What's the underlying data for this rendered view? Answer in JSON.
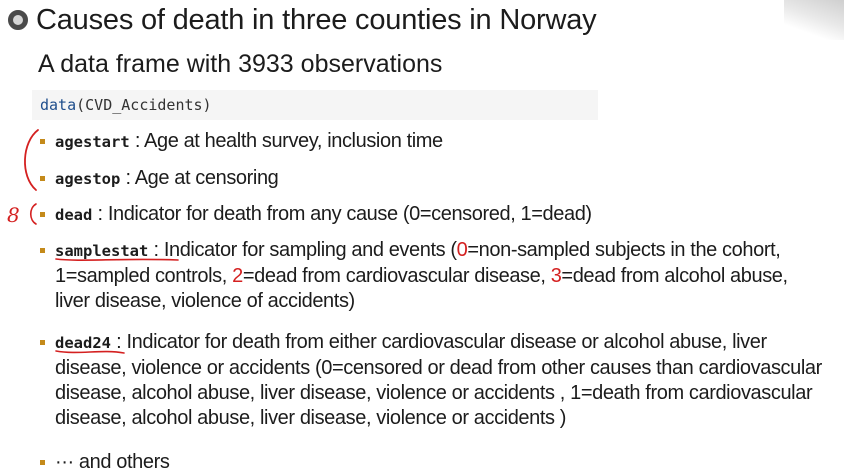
{
  "slide": {
    "title": "Causes of death in three counties in Norway",
    "subtitle": "A data frame with 3933 observations",
    "code": {
      "fn": "data",
      "args": "(CVD_Accidents)"
    },
    "bullets": [
      {
        "term": "agestart",
        "sep": " : ",
        "text": "Age at health survey, inclusion time"
      },
      {
        "term": "agestop",
        "sep": " : ",
        "text": "Age at censoring"
      },
      {
        "term": "dead",
        "sep": " : ",
        "text": "Indicator for death from any cause (0=censored, 1=dead)"
      },
      {
        "term": "samplestat",
        "sep": " : ",
        "text_a": "Indicator for sampling and events (",
        "mark_0": "0",
        "text_b": "=non-sampled subjects in the cohort, 1=sampled controls, ",
        "mark_2": "2",
        "text_c": "=dead from cardiovascular disease, ",
        "mark_3": "3",
        "text_d": "=dead from alcohol abuse, liver disease, violence of accidents)"
      },
      {
        "term": "dead24",
        "sep": " : ",
        "text": "Indicator for death from either cardiovascular disease or alcohol abuse, liver disease, violence or accidents (0=censored or dead from other causes than cardiovascular disease, alcohol abuse, liver disease, violence or accidents , 1=death from cardiovascular disease, alcohol abuse, liver disease, violence or accidents )"
      },
      {
        "term": "",
        "sep": "",
        "text": "··· and others"
      }
    ],
    "annotations": {
      "margin_note": "8"
    }
  }
}
